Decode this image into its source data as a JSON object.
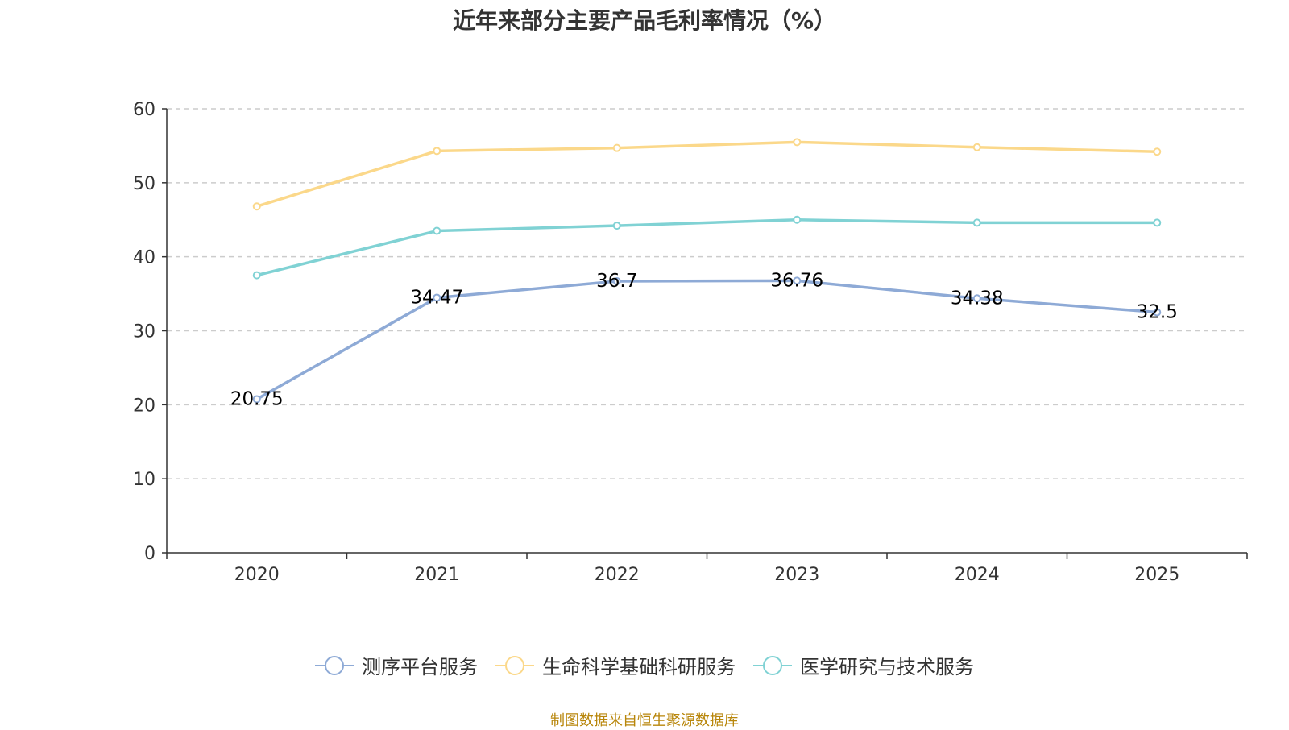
{
  "chart_data": {
    "type": "line",
    "title": "近年来部分主要产品毛利率情况（%）",
    "categories": [
      "2020",
      "2021",
      "2022",
      "2023",
      "2024",
      "2025"
    ],
    "ylim": [
      0,
      60
    ],
    "yticks": [
      0,
      10,
      20,
      30,
      40,
      50,
      60
    ],
    "grid": true,
    "legend_position": "bottom",
    "series": [
      {
        "name": "测序平台服务",
        "color": "#8eaad6",
        "labeled": true,
        "values": [
          20.75,
          34.47,
          36.7,
          36.76,
          34.38,
          32.5
        ]
      },
      {
        "name": "生命科学基础科研服务",
        "color": "#fbd88a",
        "labeled": false,
        "values": [
          46.8,
          54.3,
          54.7,
          55.5,
          54.8,
          54.2
        ]
      },
      {
        "name": "医学研究与技术服务",
        "color": "#80d2d4",
        "labeled": false,
        "values": [
          37.5,
          43.5,
          44.2,
          45.0,
          44.6,
          44.6
        ]
      }
    ]
  },
  "source_note": "制图数据来自恒生聚源数据库"
}
